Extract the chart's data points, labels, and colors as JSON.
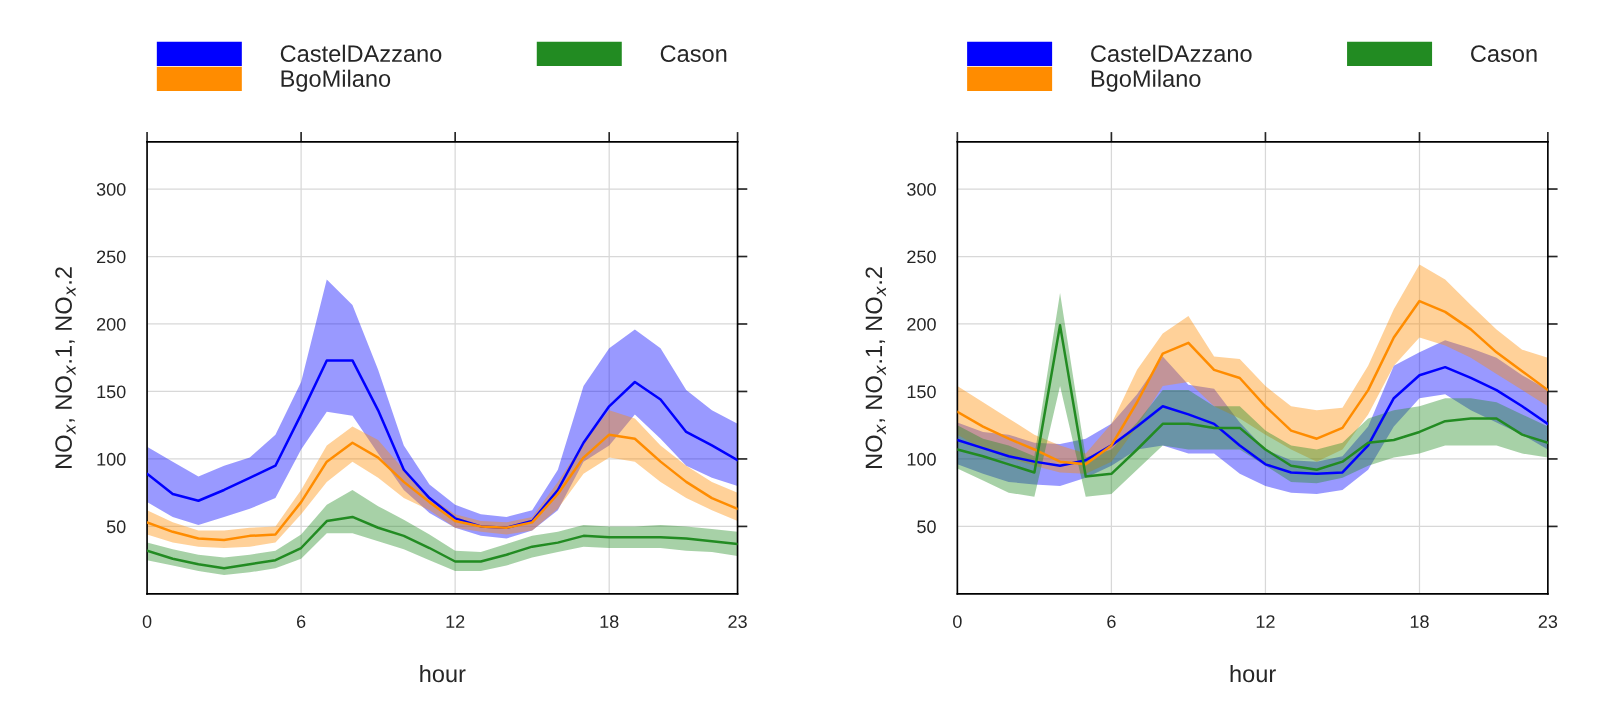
{
  "chart_data": [
    {
      "type": "line",
      "xlabel": "hour",
      "ylabel": "NO$_{x}$, NO$_{x}$.1, NO$_{x}$.2",
      "x": [
        0,
        1,
        2,
        3,
        4,
        5,
        6,
        7,
        8,
        9,
        10,
        11,
        12,
        13,
        14,
        15,
        16,
        17,
        18,
        19,
        20,
        21,
        22,
        23
      ],
      "xlim": [
        0,
        23
      ],
      "ylim": [
        0,
        335
      ],
      "xticks": [
        0,
        6,
        12,
        18,
        23
      ],
      "yticks": [
        50,
        100,
        150,
        200,
        250,
        300
      ],
      "grid": true,
      "legend": "top",
      "line_style": "solid",
      "series": [
        {
          "name": "CastelDAzzano",
          "color": "#0000ff",
          "values": [
            89,
            74,
            69,
            77,
            86,
            95,
            133,
            173,
            173,
            136,
            92,
            71,
            56,
            50,
            49,
            54,
            77,
            112,
            139,
            157,
            144,
            120,
            110,
            99
          ],
          "lower": [
            68,
            57,
            51,
            57,
            63,
            71,
            107,
            135,
            132,
            104,
            77,
            60,
            49,
            43,
            41,
            47,
            62,
            98,
            110,
            133,
            115,
            95,
            86,
            80
          ],
          "upper": [
            109,
            98,
            87,
            95,
            101,
            118,
            157,
            233,
            214,
            166,
            110,
            81,
            66,
            59,
            57,
            62,
            92,
            154,
            182,
            196,
            182,
            151,
            136,
            126
          ]
        },
        {
          "name": "BgoMilano",
          "color": "#ff8c00",
          "values": [
            53,
            46,
            41,
            40,
            43,
            44,
            68,
            98,
            112,
            101,
            83,
            68,
            54,
            50,
            49,
            53,
            74,
            101,
            118,
            115,
            98,
            83,
            71,
            63
          ],
          "lower": [
            44,
            38,
            35,
            34,
            35,
            38,
            59,
            83,
            98,
            86,
            71,
            62,
            49,
            46,
            44,
            47,
            63,
            89,
            101,
            98,
            83,
            71,
            62,
            54
          ],
          "upper": [
            62,
            53,
            47,
            47,
            49,
            50,
            77,
            110,
            124,
            114,
            92,
            72,
            59,
            54,
            53,
            57,
            83,
            112,
            136,
            130,
            110,
            95,
            83,
            75
          ]
        },
        {
          "name": "Cason",
          "color": "#228b22",
          "values": [
            32,
            26,
            22,
            19,
            22,
            25,
            34,
            54,
            57,
            49,
            43,
            34,
            24,
            24,
            29,
            35,
            38,
            43,
            42,
            42,
            42,
            41,
            39,
            37
          ],
          "lower": [
            25,
            21,
            17,
            14,
            16,
            19,
            26,
            45,
            45,
            39,
            33,
            25,
            17,
            17,
            21,
            27,
            31,
            35,
            34,
            34,
            34,
            32,
            31,
            28
          ],
          "upper": [
            38,
            33,
            29,
            27,
            29,
            32,
            44,
            66,
            77,
            65,
            55,
            44,
            32,
            31,
            37,
            43,
            46,
            51,
            50,
            50,
            51,
            50,
            48,
            46
          ]
        }
      ]
    },
    {
      "type": "line",
      "xlabel": "hour",
      "ylabel": "NO$_{x}$, NO$_{x}$.1, NO$_{x}$.2",
      "x": [
        0,
        1,
        2,
        3,
        4,
        5,
        6,
        7,
        8,
        9,
        10,
        11,
        12,
        13,
        14,
        15,
        16,
        17,
        18,
        19,
        20,
        21,
        22,
        23
      ],
      "xlim": [
        0,
        23
      ],
      "ylim": [
        0,
        335
      ],
      "xticks": [
        0,
        6,
        12,
        18,
        23
      ],
      "yticks": [
        50,
        100,
        150,
        200,
        250,
        300
      ],
      "grid": true,
      "legend": "top",
      "line_style": "solid",
      "series": [
        {
          "name": "CastelDAzzano",
          "color": "#0000ff",
          "values": [
            114,
            108,
            102,
            98,
            95,
            99,
            110,
            124,
            139,
            133,
            126,
            110,
            96,
            90,
            89,
            90,
            110,
            145,
            162,
            168,
            160,
            151,
            139,
            126
          ],
          "lower": [
            96,
            89,
            83,
            81,
            80,
            86,
            95,
            107,
            110,
            104,
            104,
            89,
            80,
            75,
            74,
            77,
            92,
            124,
            145,
            148,
            136,
            127,
            118,
            107
          ],
          "upper": [
            127,
            120,
            118,
            112,
            111,
            115,
            126,
            148,
            176,
            155,
            152,
            127,
            107,
            99,
            98,
            102,
            124,
            169,
            179,
            188,
            182,
            175,
            162,
            151
          ]
        },
        {
          "name": "BgoMilano",
          "color": "#ff8c00",
          "values": [
            135,
            124,
            115,
            107,
            98,
            96,
            110,
            142,
            178,
            186,
            166,
            160,
            139,
            121,
            115,
            123,
            151,
            190,
            217,
            209,
            196,
            179,
            165,
            151
          ],
          "lower": [
            118,
            107,
            101,
            95,
            90,
            89,
            98,
            124,
            154,
            157,
            139,
            130,
            118,
            107,
            98,
            107,
            133,
            169,
            190,
            184,
            175,
            163,
            151,
            139
          ],
          "upper": [
            154,
            142,
            130,
            118,
            110,
            104,
            126,
            166,
            193,
            206,
            176,
            174,
            154,
            139,
            136,
            138,
            169,
            211,
            244,
            233,
            214,
            196,
            181,
            175
          ]
        },
        {
          "name": "Cason",
          "color": "#228b22",
          "values": [
            107,
            102,
            96,
            90,
            199,
            87,
            89,
            107,
            126,
            126,
            123,
            123,
            107,
            95,
            92,
            98,
            112,
            114,
            120,
            128,
            130,
            130,
            118,
            112
          ],
          "lower": [
            93,
            84,
            75,
            72,
            154,
            72,
            74,
            92,
            110,
            107,
            107,
            107,
            95,
            83,
            82,
            86,
            95,
            101,
            104,
            110,
            110,
            110,
            104,
            101
          ],
          "upper": [
            125,
            115,
            110,
            102,
            223,
            101,
            107,
            127,
            151,
            151,
            139,
            139,
            121,
            110,
            107,
            112,
            130,
            136,
            139,
            145,
            145,
            142,
            133,
            124
          ]
        }
      ]
    }
  ]
}
